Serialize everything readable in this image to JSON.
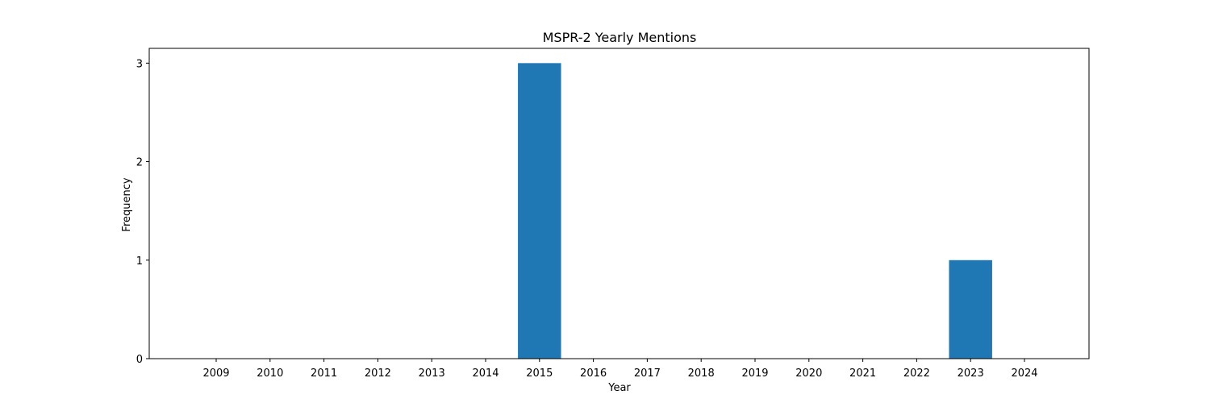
{
  "chart_data": {
    "type": "bar",
    "title": "MSPR-2 Yearly Mentions",
    "xlabel": "Year",
    "ylabel": "Frequency",
    "categories": [
      "2009",
      "2010",
      "2011",
      "2012",
      "2013",
      "2014",
      "2015",
      "2016",
      "2017",
      "2018",
      "2019",
      "2020",
      "2021",
      "2022",
      "2023",
      "2024"
    ],
    "values": [
      0,
      0,
      0,
      0,
      0,
      0,
      3,
      0,
      0,
      0,
      0,
      0,
      0,
      0,
      1,
      0
    ],
    "yticks": [
      0,
      1,
      2,
      3
    ],
    "ylim": [
      0,
      3.15
    ],
    "grid": false,
    "bar_color": "#1f77b4"
  }
}
